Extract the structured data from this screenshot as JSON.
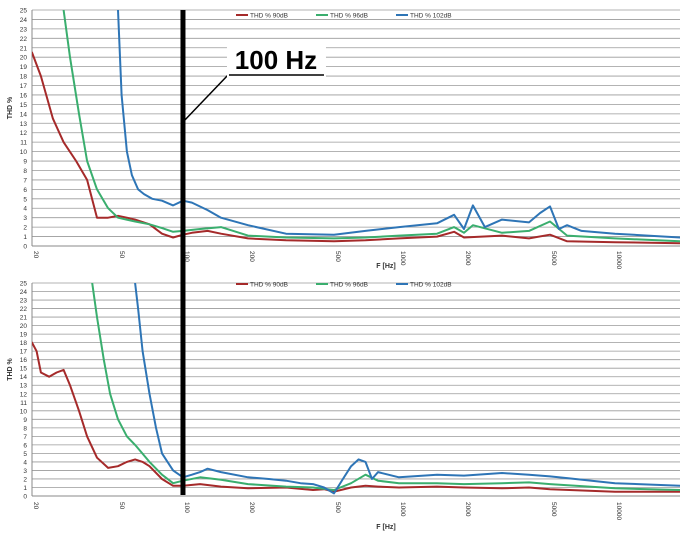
{
  "chart_data": [
    {
      "type": "line",
      "title": "",
      "xlabel": "F [Hz]",
      "ylabel": "THD %",
      "x_scale": "log",
      "xlim": [
        20,
        20000
      ],
      "ylim": [
        0,
        25
      ],
      "grid": "horizontal",
      "legend": "top-center",
      "x_ticks": [
        "20",
        "50",
        "100",
        "200",
        "500",
        "1000",
        "2000",
        "5000",
        "10000"
      ],
      "y_ticks": [
        "0",
        "1",
        "2",
        "3",
        "4",
        "5",
        "6",
        "7",
        "8",
        "9",
        "10",
        "11",
        "12",
        "13",
        "14",
        "15",
        "16",
        "17",
        "18",
        "19",
        "20",
        "21",
        "22",
        "23",
        "24",
        "25"
      ],
      "series": [
        {
          "name": "THD % 90dB",
          "color": "#a52a2a",
          "x": [
            20,
            22,
            25,
            28,
            32,
            36,
            40,
            45,
            50,
            55,
            60,
            70,
            80,
            90,
            100,
            110,
            130,
            150,
            200,
            300,
            500,
            700,
            1000,
            1500,
            1800,
            2000,
            3000,
            4000,
            5000,
            6000,
            10000,
            20000
          ],
          "y": [
            20.5,
            18.0,
            13.5,
            11.0,
            9.0,
            7.0,
            3.0,
            3.0,
            3.2,
            3.0,
            2.8,
            2.3,
            1.3,
            0.9,
            1.2,
            1.4,
            1.6,
            1.3,
            0.8,
            0.6,
            0.5,
            0.6,
            0.8,
            1.0,
            1.5,
            0.9,
            1.1,
            0.8,
            1.2,
            0.5,
            0.4,
            0.3
          ]
        },
        {
          "name": "THD % 96dB",
          "color": "#3aae6e",
          "x": [
            28,
            30,
            33,
            36,
            40,
            45,
            50,
            60,
            70,
            80,
            90,
            100,
            120,
            150,
            200,
            300,
            500,
            700,
            1000,
            1500,
            1800,
            2000,
            2200,
            3000,
            4000,
            5000,
            6000,
            10000,
            20000
          ],
          "y": [
            25,
            20,
            14,
            9,
            6,
            4,
            3,
            2.6,
            2.3,
            1.9,
            1.5,
            1.6,
            1.8,
            2.0,
            1.1,
            0.9,
            0.8,
            0.9,
            1.1,
            1.3,
            2.0,
            1.4,
            2.2,
            1.4,
            1.6,
            2.6,
            1.1,
            0.8,
            0.5
          ]
        },
        {
          "name": "THD % 102dB",
          "color": "#2e75b6",
          "x": [
            50,
            52,
            55,
            58,
            62,
            66,
            72,
            80,
            90,
            100,
            110,
            130,
            150,
            200,
            300,
            500,
            700,
            1000,
            1500,
            1800,
            2000,
            2200,
            2500,
            3000,
            4000,
            4500,
            5000,
            5500,
            6000,
            7000,
            10000,
            20000
          ],
          "y": [
            25,
            16,
            10,
            7.5,
            6.0,
            5.5,
            5.0,
            4.8,
            4.3,
            4.8,
            4.6,
            3.8,
            3.0,
            2.2,
            1.3,
            1.2,
            1.6,
            2.0,
            2.4,
            3.3,
            1.8,
            4.3,
            2.0,
            2.8,
            2.5,
            3.5,
            4.2,
            1.8,
            2.2,
            1.6,
            1.3,
            0.9
          ]
        }
      ]
    },
    {
      "type": "line",
      "title": "",
      "xlabel": "F [Hz]",
      "ylabel": "THD %",
      "x_scale": "log",
      "xlim": [
        20,
        20000
      ],
      "ylim": [
        0,
        25
      ],
      "grid": "horizontal",
      "legend": "top-center",
      "x_ticks": [
        "20",
        "50",
        "100",
        "200",
        "500",
        "1000",
        "2000",
        "5000",
        "10000"
      ],
      "y_ticks": [
        "0",
        "1",
        "2",
        "3",
        "4",
        "5",
        "6",
        "7",
        "8",
        "9",
        "10",
        "11",
        "12",
        "13",
        "14",
        "15",
        "16",
        "17",
        "18",
        "19",
        "20",
        "21",
        "22",
        "23",
        "24",
        "25"
      ],
      "series": [
        {
          "name": "THD % 90dB",
          "color": "#a52a2a",
          "x": [
            20,
            21,
            22,
            24,
            26,
            28,
            30,
            33,
            36,
            40,
            45,
            50,
            55,
            60,
            65,
            70,
            80,
            90,
            100,
            120,
            150,
            200,
            300,
            400,
            450,
            500,
            600,
            700,
            800,
            1000,
            1500,
            2000,
            3000,
            4000,
            5000,
            10000,
            20000
          ],
          "y": [
            18,
            17,
            14.5,
            14,
            14.5,
            14.8,
            13,
            10,
            7,
            4.5,
            3.3,
            3.5,
            4.0,
            4.3,
            4.0,
            3.5,
            2.0,
            1.2,
            1.2,
            1.4,
            1.1,
            0.9,
            1.0,
            0.7,
            0.8,
            0.5,
            1.0,
            1.2,
            1.1,
            1.0,
            1.1,
            1.0,
            0.9,
            1.0,
            0.8,
            0.5,
            0.5
          ]
        },
        {
          "name": "THD % 96dB",
          "color": "#3aae6e",
          "x": [
            38,
            40,
            43,
            46,
            50,
            55,
            60,
            70,
            80,
            90,
            100,
            120,
            150,
            200,
            300,
            400,
            500,
            600,
            700,
            800,
            1000,
            1500,
            2000,
            3000,
            4000,
            5000,
            10000,
            20000
          ],
          "y": [
            25,
            21,
            16,
            12,
            9,
            7,
            6,
            4,
            2.5,
            1.5,
            1.8,
            2.2,
            1.9,
            1.4,
            1.1,
            1.0,
            0.7,
            1.5,
            2.5,
            1.8,
            1.5,
            1.5,
            1.4,
            1.5,
            1.6,
            1.4,
            0.9,
            0.7
          ]
        },
        {
          "name": "THD % 102dB",
          "color": "#2e75b6",
          "x": [
            60,
            62,
            65,
            70,
            75,
            80,
            90,
            100,
            110,
            120,
            130,
            150,
            200,
            250,
            300,
            350,
            400,
            450,
            500,
            550,
            600,
            650,
            700,
            750,
            800,
            1000,
            1500,
            2000,
            3000,
            4000,
            5000,
            6000,
            10000,
            20000
          ],
          "y": [
            25,
            22,
            17,
            12,
            8,
            5,
            3,
            2.2,
            2.5,
            2.8,
            3.2,
            2.8,
            2.2,
            2.0,
            1.8,
            1.5,
            1.4,
            1.0,
            0.3,
            2.0,
            3.5,
            4.3,
            4.0,
            2.0,
            2.8,
            2.2,
            2.5,
            2.4,
            2.7,
            2.5,
            2.3,
            2.1,
            1.5,
            1.2
          ]
        }
      ]
    }
  ],
  "annotation": {
    "label": "100 Hz",
    "x": 100
  }
}
